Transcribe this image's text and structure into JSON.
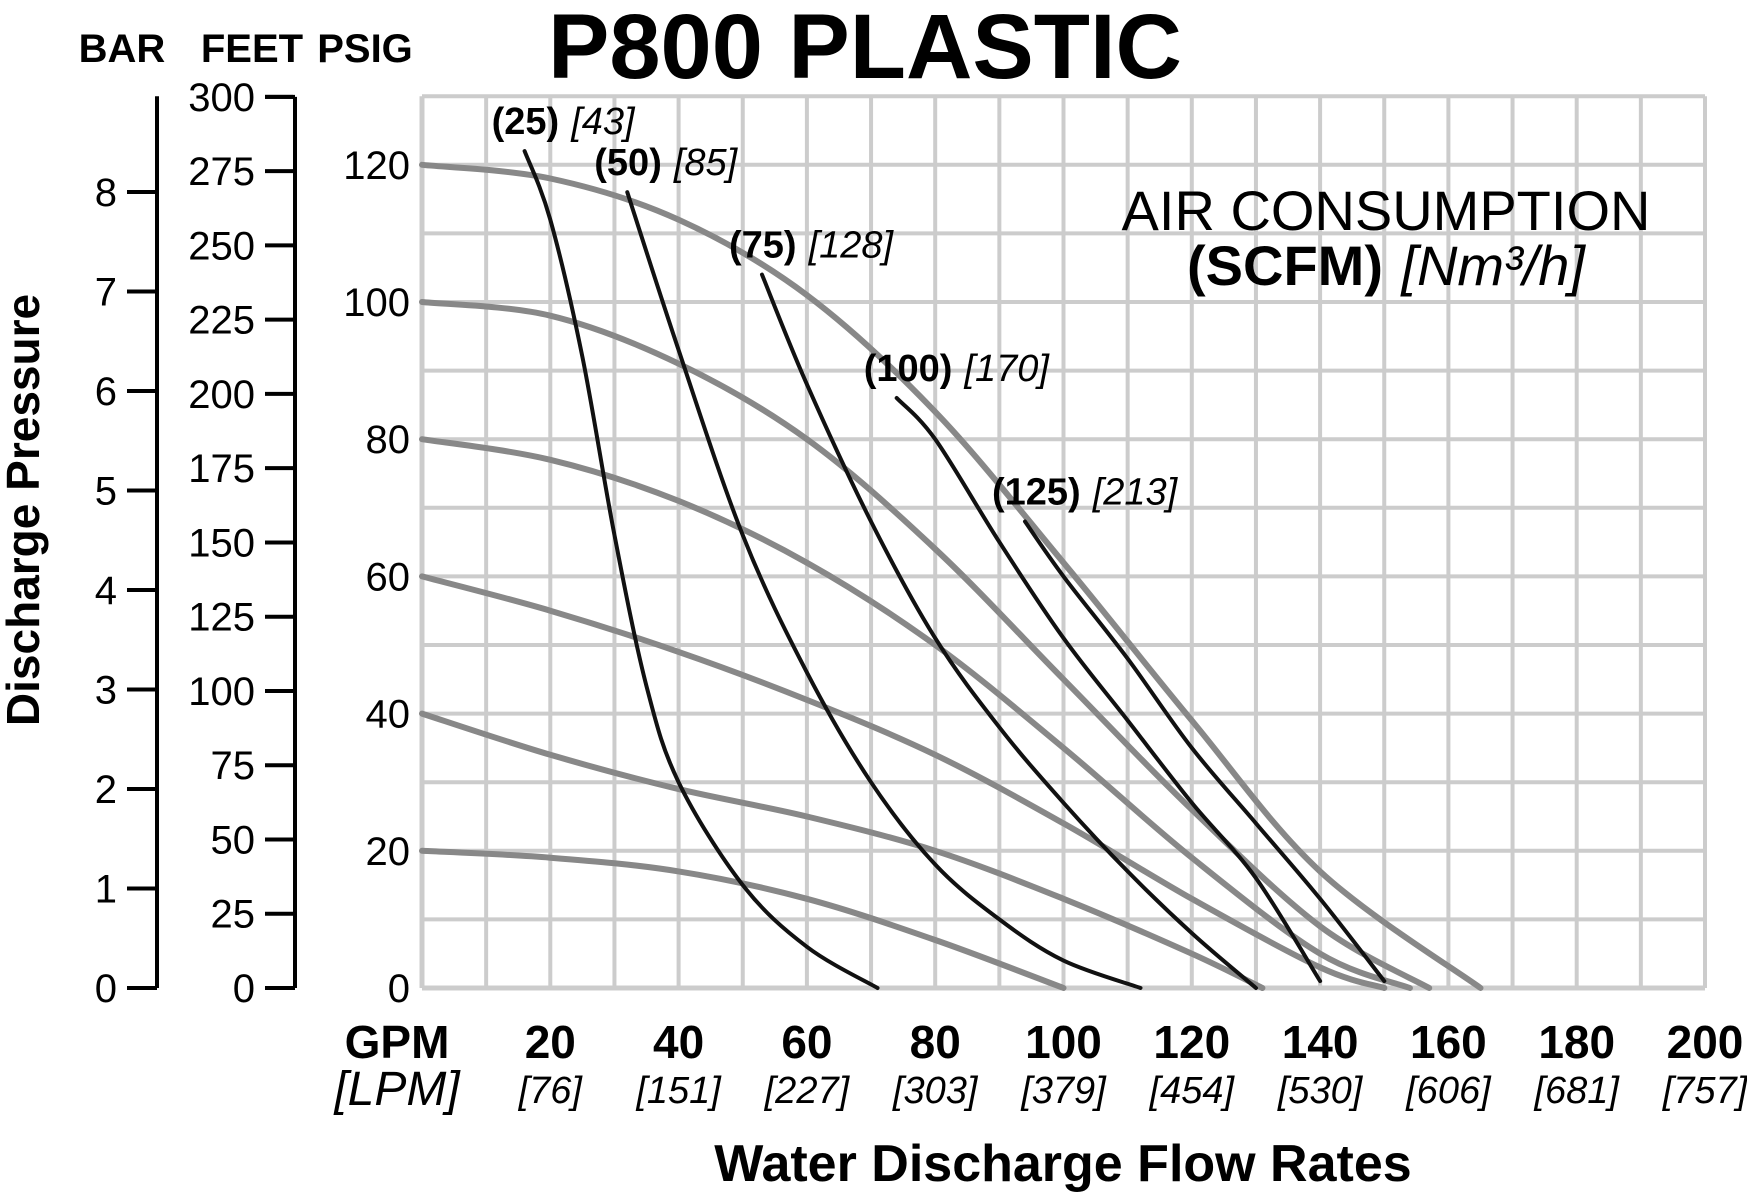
{
  "chart_data": {
    "type": "line",
    "title": "P800 PLASTIC",
    "xlabel": "Water Discharge Flow Rates",
    "ylabel": "Discharge Pressure",
    "x_unit_primary": "GPM",
    "x_unit_secondary": "[LPM]",
    "xlim": [
      0,
      200
    ],
    "ylim_psig": [
      0,
      130
    ],
    "x_ticks": [
      {
        "gpm": "20",
        "lpm": "[76]"
      },
      {
        "gpm": "40",
        "lpm": "[151]"
      },
      {
        "gpm": "60",
        "lpm": "[227]"
      },
      {
        "gpm": "80",
        "lpm": "[303]"
      },
      {
        "gpm": "100",
        "lpm": "[379]"
      },
      {
        "gpm": "120",
        "lpm": "[454]"
      },
      {
        "gpm": "140",
        "lpm": "[530]"
      },
      {
        "gpm": "160",
        "lpm": "[606]"
      },
      {
        "gpm": "180",
        "lpm": "[681]"
      },
      {
        "gpm": "200",
        "lpm": "[757]"
      }
    ],
    "axes": [
      {
        "name": "BAR",
        "ticks": [
          "0",
          "1",
          "2",
          "3",
          "4",
          "5",
          "6",
          "7",
          "8"
        ],
        "values": [
          0,
          1,
          2,
          3,
          4,
          5,
          6,
          7,
          8
        ]
      },
      {
        "name": "FEET",
        "ticks": [
          "0",
          "25",
          "50",
          "75",
          "100",
          "125",
          "150",
          "175",
          "200",
          "225",
          "250",
          "275",
          "300"
        ],
        "values": [
          0,
          25,
          50,
          75,
          100,
          125,
          150,
          175,
          200,
          225,
          250,
          275,
          300
        ]
      },
      {
        "name": "PSIG",
        "ticks": [
          "0",
          "20",
          "40",
          "60",
          "80",
          "100",
          "120"
        ],
        "values": [
          0,
          20,
          40,
          60,
          80,
          100,
          120
        ]
      }
    ],
    "legend_title": "AIR CONSUMPTION",
    "legend_sub_bold": "(SCFM)",
    "legend_sub_italic": "[Nm³/h]",
    "pressure_curves": [
      {
        "name": "120 psig",
        "points": [
          [
            0,
            120
          ],
          [
            20,
            118
          ],
          [
            40,
            112
          ],
          [
            60,
            101
          ],
          [
            80,
            84
          ],
          [
            100,
            62
          ],
          [
            120,
            39
          ],
          [
            140,
            17
          ],
          [
            165,
            0
          ]
        ]
      },
      {
        "name": "100 psig",
        "points": [
          [
            0,
            100
          ],
          [
            20,
            98
          ],
          [
            40,
            91
          ],
          [
            60,
            80
          ],
          [
            80,
            64
          ],
          [
            100,
            45
          ],
          [
            120,
            26
          ],
          [
            140,
            9
          ],
          [
            157,
            0
          ]
        ]
      },
      {
        "name": "80 psig",
        "points": [
          [
            0,
            80
          ],
          [
            20,
            77
          ],
          [
            40,
            71
          ],
          [
            60,
            62
          ],
          [
            80,
            50
          ],
          [
            100,
            35
          ],
          [
            120,
            19
          ],
          [
            140,
            5
          ],
          [
            154,
            0
          ]
        ]
      },
      {
        "name": "60 psig",
        "points": [
          [
            0,
            60
          ],
          [
            20,
            55
          ],
          [
            40,
            49
          ],
          [
            60,
            42
          ],
          [
            80,
            34
          ],
          [
            100,
            24
          ],
          [
            120,
            13
          ],
          [
            140,
            3
          ],
          [
            150,
            0
          ]
        ]
      },
      {
        "name": "40 psig",
        "points": [
          [
            0,
            40
          ],
          [
            20,
            34
          ],
          [
            40,
            29
          ],
          [
            60,
            25
          ],
          [
            80,
            20
          ],
          [
            100,
            13
          ],
          [
            120,
            5
          ],
          [
            131,
            0
          ]
        ]
      },
      {
        "name": "20 psig",
        "points": [
          [
            0,
            20
          ],
          [
            20,
            19
          ],
          [
            40,
            17
          ],
          [
            60,
            13
          ],
          [
            80,
            7
          ],
          [
            100,
            0
          ]
        ]
      }
    ],
    "air_curves": [
      {
        "scfm": "(25)",
        "nm3h": "[43]",
        "points": [
          [
            16,
            122
          ],
          [
            20,
            112
          ],
          [
            25,
            92
          ],
          [
            30,
            66
          ],
          [
            35,
            44
          ],
          [
            40,
            30
          ],
          [
            50,
            15
          ],
          [
            60,
            6
          ],
          [
            71,
            0
          ]
        ]
      },
      {
        "scfm": "(50)",
        "nm3h": "[85]",
        "points": [
          [
            32,
            116
          ],
          [
            40,
            93
          ],
          [
            50,
            66
          ],
          [
            60,
            46
          ],
          [
            70,
            30
          ],
          [
            80,
            18
          ],
          [
            90,
            10
          ],
          [
            100,
            4
          ],
          [
            112,
            0
          ]
        ]
      },
      {
        "scfm": "(75)",
        "nm3h": "[128]",
        "points": [
          [
            53,
            104
          ],
          [
            60,
            88
          ],
          [
            70,
            68
          ],
          [
            80,
            51
          ],
          [
            90,
            38
          ],
          [
            100,
            27
          ],
          [
            110,
            17
          ],
          [
            120,
            8
          ],
          [
            130,
            0
          ]
        ]
      },
      {
        "scfm": "(100)",
        "nm3h": "[170]",
        "points": [
          [
            74,
            86
          ],
          [
            80,
            80
          ],
          [
            90,
            65
          ],
          [
            100,
            51
          ],
          [
            110,
            39
          ],
          [
            120,
            27
          ],
          [
            130,
            16
          ],
          [
            140,
            1
          ]
        ]
      },
      {
        "scfm": "(125)",
        "nm3h": "[213]",
        "points": [
          [
            94,
            68
          ],
          [
            100,
            60
          ],
          [
            110,
            48
          ],
          [
            120,
            35
          ],
          [
            130,
            24
          ],
          [
            140,
            13
          ],
          [
            150,
            1
          ]
        ]
      }
    ]
  }
}
